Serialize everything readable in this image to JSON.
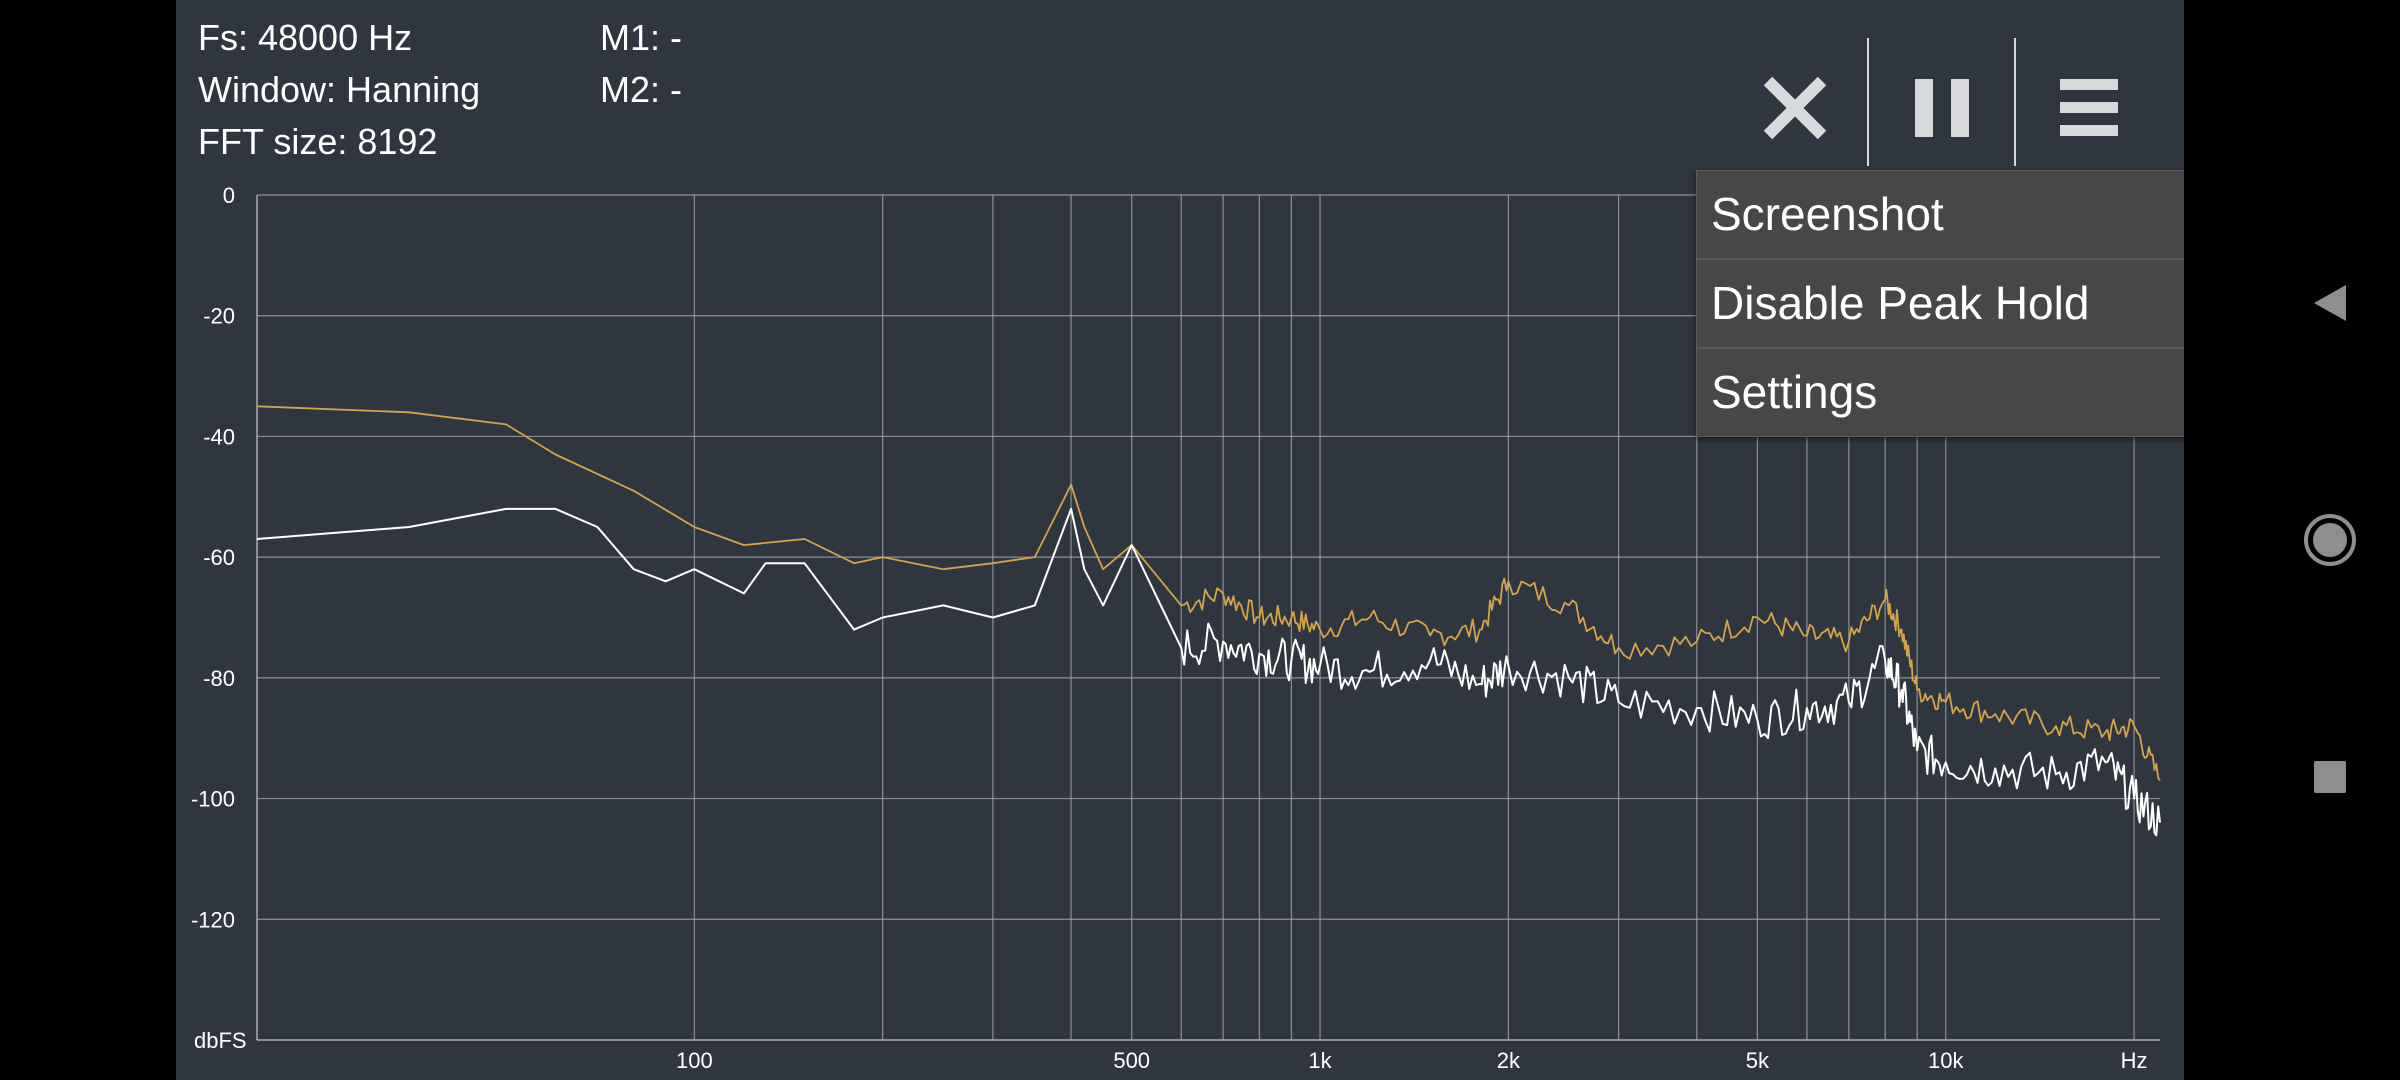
{
  "info": {
    "fs": "Fs: 48000 Hz",
    "window": "Window: Hanning",
    "fft_size": "FFT size: 8192",
    "m1": "M1: -",
    "m2": "M2: -"
  },
  "toolbar": {
    "close_icon": "close-icon",
    "pause_icon": "pause-icon",
    "menu_icon": "hamburger-menu-icon"
  },
  "menu": {
    "items": [
      "Screenshot",
      "Disable Peak Hold",
      "Settings"
    ]
  },
  "nav": {
    "back_icon": "back-triangle-icon",
    "home_icon": "home-circle-icon",
    "recents_icon": "recents-square-icon"
  },
  "colors": {
    "background": "#30363f",
    "grid": "#a9adb2",
    "peak_hold": "#d4a34a",
    "live": "#ffffff",
    "menu_bg": "#474747"
  },
  "chart_data": {
    "type": "line",
    "x_scale": "log",
    "xlim": [
      20,
      22000
    ],
    "ylim": [
      -140,
      0
    ],
    "y_ticks": [
      0,
      -20,
      -40,
      -60,
      -80,
      -100,
      -120
    ],
    "y_tick_labels": [
      "0",
      "-20",
      "-40",
      "-60",
      "-80",
      "-100",
      "-120"
    ],
    "y_unit_label": "dbFS",
    "x_tick_labels": [
      "100",
      "500",
      "1k",
      "2k",
      "5k",
      "10k",
      "Hz"
    ],
    "x_tick_values": [
      100,
      500,
      1000,
      2000,
      5000,
      10000,
      20000
    ],
    "x_gridlines": [
      100,
      200,
      300,
      400,
      500,
      600,
      700,
      800,
      900,
      1000,
      2000,
      3000,
      4000,
      5000,
      6000,
      7000,
      8000,
      9000,
      10000,
      20000
    ],
    "grid": true,
    "series": [
      {
        "color": "#d4a34a",
        "x": [
          20,
          35,
          50,
          60,
          80,
          100,
          120,
          150,
          180,
          200,
          250,
          300,
          350,
          400,
          420,
          450,
          500,
          600,
          700,
          800,
          900,
          1000,
          1200,
          1500,
          1800,
          2000,
          2500,
          3000,
          4000,
          5000,
          6000,
          7000,
          8000,
          8500,
          9000,
          10000,
          12000,
          15000,
          18000,
          20000,
          22000
        ],
        "y": [
          -35,
          -36,
          -38,
          -43,
          -49,
          -55,
          -58,
          -57,
          -61,
          -60,
          -62,
          -61,
          -60,
          -48,
          -55,
          -62,
          -58,
          -68,
          -66,
          -70,
          -70,
          -72,
          -70,
          -73,
          -72,
          -64,
          -68,
          -75,
          -74,
          -70,
          -73,
          -74,
          -67,
          -72,
          -82,
          -84,
          -86,
          -88,
          -89,
          -88,
          -97
        ]
      },
      {
        "color": "#ffffff",
        "x": [
          20,
          35,
          50,
          60,
          70,
          80,
          90,
          100,
          120,
          130,
          150,
          180,
          200,
          250,
          300,
          350,
          400,
          420,
          450,
          500,
          600,
          700,
          800,
          900,
          1000,
          1200,
          1500,
          1800,
          2000,
          2500,
          3000,
          4000,
          5000,
          6000,
          7000,
          8000,
          8500,
          9000,
          10000,
          12000,
          15000,
          18000,
          20000,
          22000
        ],
        "y": [
          -57,
          -55,
          -52,
          -52,
          -55,
          -62,
          -64,
          -62,
          -66,
          -61,
          -61,
          -72,
          -70,
          -68,
          -70,
          -68,
          -52,
          -62,
          -68,
          -58,
          -75,
          -74,
          -76,
          -77,
          -78,
          -79,
          -77,
          -81,
          -78,
          -80,
          -84,
          -85,
          -87,
          -85,
          -84,
          -77,
          -82,
          -92,
          -94,
          -95,
          -96,
          -94,
          -100,
          -104
        ]
      }
    ]
  }
}
